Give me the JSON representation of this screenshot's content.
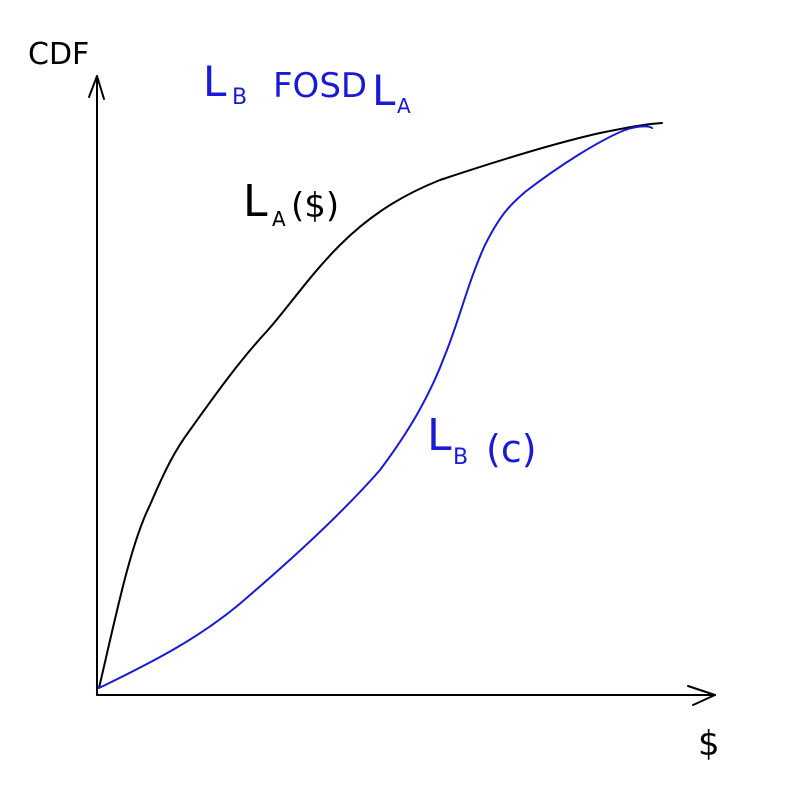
{
  "axes": {
    "y_label": "CDF",
    "x_label": "$",
    "color": "#000000"
  },
  "title": {
    "text": "L_B FOSD L_A",
    "main": "L",
    "main_sub": "B",
    "relation": "FOSD",
    "other": "L",
    "other_sub": "A",
    "color": "#1a1ad6"
  },
  "curve_a": {
    "label_main": "L",
    "label_sub": "A",
    "label_arg": "($)",
    "color": "#000000"
  },
  "curve_b": {
    "label_main": "L",
    "label_sub": "B",
    "label_arg": "(c)",
    "color": "#1a1ad6"
  }
}
